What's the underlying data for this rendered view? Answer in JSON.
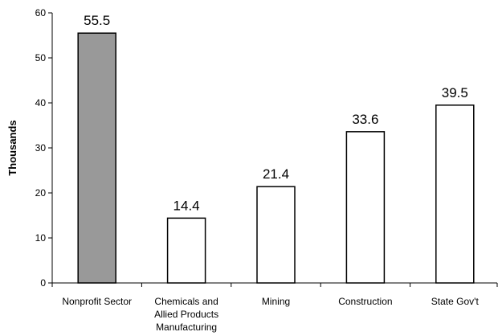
{
  "chart_data": {
    "type": "bar",
    "title": "",
    "xlabel": "",
    "ylabel": "Thousands",
    "ylim": [
      0,
      60
    ],
    "yticks": [
      0,
      10,
      20,
      30,
      40,
      50,
      60
    ],
    "grid": false,
    "legend": "none",
    "categories": [
      [
        "Nonprofit Sector"
      ],
      [
        "Chemicals and",
        "Allied Products",
        "Manufacturing"
      ],
      [
        "Mining"
      ],
      [
        "Construction"
      ],
      [
        "State Gov't"
      ]
    ],
    "values": [
      55.5,
      14.4,
      21.4,
      33.6,
      39.5
    ],
    "data_labels": [
      "55.5",
      "14.4",
      "21.4",
      "33.6",
      "39.5"
    ],
    "colors": {
      "highlight": "#999999",
      "default": "#ffffff",
      "stroke": "#000000"
    },
    "highlight_index": 0
  }
}
